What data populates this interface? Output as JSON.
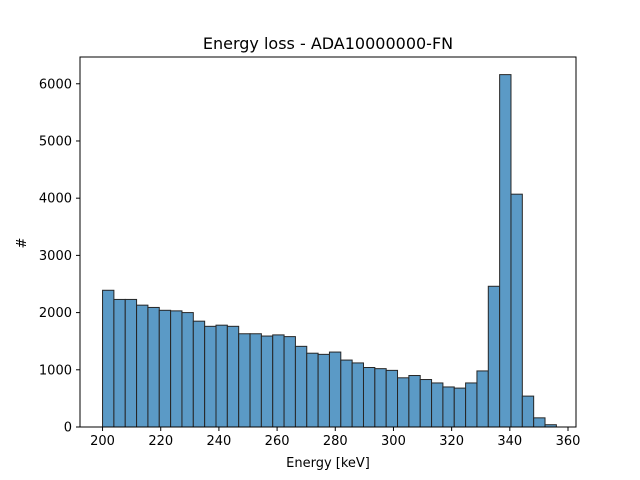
{
  "chart_data": {
    "type": "bar",
    "title": "Energy loss - ADA10000000-FN",
    "xlabel": "Energy [keV]",
    "ylabel": "#",
    "xlim": [
      192.25,
      362.75
    ],
    "ylim": [
      0,
      6468
    ],
    "xticks": [
      200,
      220,
      240,
      260,
      280,
      300,
      320,
      340,
      360
    ],
    "yticks": [
      0,
      1000,
      2000,
      3000,
      4000,
      5000,
      6000
    ],
    "bin_width": 3.9,
    "bins": [
      {
        "x_start": 200.0,
        "count": 2390
      },
      {
        "x_start": 203.9,
        "count": 2230
      },
      {
        "x_start": 207.8,
        "count": 2230
      },
      {
        "x_start": 211.7,
        "count": 2130
      },
      {
        "x_start": 215.6,
        "count": 2090
      },
      {
        "x_start": 219.5,
        "count": 2040
      },
      {
        "x_start": 223.4,
        "count": 2030
      },
      {
        "x_start": 227.3,
        "count": 2000
      },
      {
        "x_start": 231.2,
        "count": 1850
      },
      {
        "x_start": 235.1,
        "count": 1760
      },
      {
        "x_start": 239.0,
        "count": 1780
      },
      {
        "x_start": 242.9,
        "count": 1760
      },
      {
        "x_start": 246.8,
        "count": 1630
      },
      {
        "x_start": 250.7,
        "count": 1630
      },
      {
        "x_start": 254.6,
        "count": 1590
      },
      {
        "x_start": 258.5,
        "count": 1610
      },
      {
        "x_start": 262.4,
        "count": 1580
      },
      {
        "x_start": 266.3,
        "count": 1410
      },
      {
        "x_start": 270.2,
        "count": 1290
      },
      {
        "x_start": 274.1,
        "count": 1270
      },
      {
        "x_start": 278.0,
        "count": 1310
      },
      {
        "x_start": 281.9,
        "count": 1170
      },
      {
        "x_start": 285.8,
        "count": 1120
      },
      {
        "x_start": 289.7,
        "count": 1040
      },
      {
        "x_start": 293.6,
        "count": 1020
      },
      {
        "x_start": 297.5,
        "count": 990
      },
      {
        "x_start": 301.4,
        "count": 860
      },
      {
        "x_start": 305.3,
        "count": 900
      },
      {
        "x_start": 309.2,
        "count": 830
      },
      {
        "x_start": 313.1,
        "count": 770
      },
      {
        "x_start": 317.0,
        "count": 700
      },
      {
        "x_start": 320.9,
        "count": 680
      },
      {
        "x_start": 324.8,
        "count": 770
      },
      {
        "x_start": 328.7,
        "count": 980
      },
      {
        "x_start": 332.6,
        "count": 2460
      },
      {
        "x_start": 336.5,
        "count": 6160
      },
      {
        "x_start": 340.4,
        "count": 4070
      },
      {
        "x_start": 344.3,
        "count": 540
      },
      {
        "x_start": 348.2,
        "count": 160
      },
      {
        "x_start": 352.1,
        "count": 40
      }
    ],
    "bar_color": "#5b9ac6",
    "bar_edge_color": "#262626",
    "grid": false,
    "legend": "none"
  }
}
